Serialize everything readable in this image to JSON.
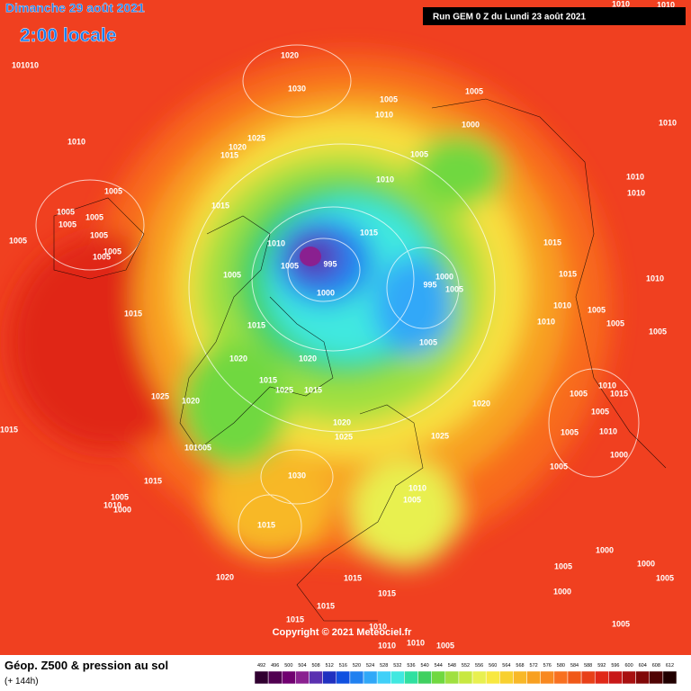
{
  "header": {
    "title": "Dimanche 29 août 2021",
    "time": "2:00 locale",
    "run": "Run GEM 0 Z du Lundi 23 août 2021"
  },
  "copyright": "Copyright © 2021 Meteociel.fr",
  "legend": {
    "title": "Géop. Z500 & pression au sol",
    "subtitle": "(+ 144h)",
    "scale": [
      492,
      496,
      500,
      504,
      508,
      512,
      516,
      520,
      524,
      528,
      532,
      536,
      540,
      544,
      548,
      552,
      556,
      560,
      564,
      568,
      572,
      576,
      580,
      584,
      588,
      592,
      596,
      600,
      604,
      608,
      612
    ],
    "colors": [
      "#300030",
      "#500050",
      "#700070",
      "#8a2090",
      "#5a30b0",
      "#2030c0",
      "#1050e0",
      "#2080f0",
      "#30a8f8",
      "#40d0f8",
      "#40e8e0",
      "#30e0a0",
      "#40d060",
      "#70d840",
      "#a0e040",
      "#c8e840",
      "#e8f050",
      "#f8e840",
      "#f8d030",
      "#f8b828",
      "#f8a020",
      "#f88820",
      "#f87020",
      "#f05818",
      "#e84018",
      "#e02818",
      "#c81818",
      "#a81010",
      "#800808",
      "#500404",
      "#200000"
    ]
  },
  "isobar_labels": [
    "1010",
    "1010",
    "1020",
    "101010",
    "1030",
    "1005",
    "1005",
    "1010",
    "1000",
    "1010",
    "1010",
    "1025",
    "1020",
    "1015",
    "1005",
    "1010",
    "1010",
    "1010",
    "1005",
    "1015",
    "1005",
    "1005",
    "1005",
    "1005",
    "1005",
    "1010",
    "1015",
    "1015",
    "1005",
    "1005",
    "995",
    "1005",
    "1005",
    "1000",
    "1015",
    "995",
    "1005",
    "1000",
    "1010",
    "1015",
    "1010",
    "1005",
    "1010",
    "1005",
    "1005",
    "1015",
    "1005",
    "1020",
    "1020",
    "1015",
    "1025",
    "1015",
    "1010",
    "1005",
    "1015",
    "1025",
    "1020",
    "1020",
    "1020",
    "1005",
    "1015",
    "1025",
    "1025",
    "1005",
    "1010",
    "101005",
    "1000",
    "1005",
    "1030",
    "1015",
    "1010",
    "1005",
    "1005",
    "1010",
    "1000",
    "1015",
    "1000",
    "1005",
    "1000",
    "1020",
    "1015",
    "1005",
    "1000",
    "1015",
    "1015",
    "1010",
    "1015",
    "1005",
    "1010",
    "1005",
    "1010"
  ]
}
